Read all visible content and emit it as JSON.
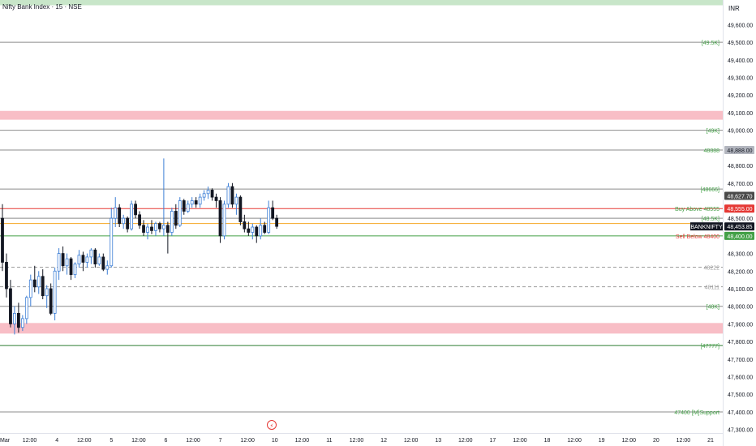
{
  "title": "Nifty Bank Index · 15 · NSE",
  "currency": "INR",
  "chart_data": {
    "type": "candlestick",
    "y_range": [
      47280,
      49740
    ],
    "y_ticks": [
      {
        "value": 49600,
        "label": "49,600.00"
      },
      {
        "value": 49500,
        "label": "49,500.00"
      },
      {
        "value": 49400,
        "label": "49,400.00"
      },
      {
        "value": 49300,
        "label": "49,300.00"
      },
      {
        "value": 49200,
        "label": "49,200.00"
      },
      {
        "value": 49100,
        "label": "49,100.00"
      },
      {
        "value": 49000,
        "label": "49,000.00"
      },
      {
        "value": 48800,
        "label": "48,800.00"
      },
      {
        "value": 48700,
        "label": "48,700.00"
      },
      {
        "value": 48500,
        "label": "48,500.00"
      },
      {
        "value": 48300,
        "label": "48,300.00"
      },
      {
        "value": 48200,
        "label": "48,200.00"
      },
      {
        "value": 48100,
        "label": "48,100.00"
      },
      {
        "value": 48000,
        "label": "48,000.00"
      },
      {
        "value": 47900,
        "label": "47,900.00"
      },
      {
        "value": 47800,
        "label": "47,800.00"
      },
      {
        "value": 47700,
        "label": "47,700.00"
      },
      {
        "value": 47600,
        "label": "47,600.00"
      },
      {
        "value": 47500,
        "label": "47,500.00"
      },
      {
        "value": 47400,
        "label": "47,400.00"
      },
      {
        "value": 47300,
        "label": "47,300.00"
      }
    ],
    "x_ticks": [
      "Mar",
      "12:00",
      "4",
      "12:00",
      "5",
      "12:00",
      "6",
      "12:00",
      "7",
      "12:00",
      "10",
      "12:00",
      "11",
      "12:00",
      "12",
      "12:00",
      "13",
      "12:00",
      "17",
      "12:00",
      "18",
      "12:00",
      "19",
      "12:00",
      "20",
      "12:00",
      "21"
    ],
    "zones": [
      {
        "from": 49060,
        "to": 49110,
        "color": "#f7b7c0"
      },
      {
        "from": 47845,
        "to": 47905,
        "color": "#f7b7c0"
      }
    ],
    "top_band": {
      "from": 49710,
      "to": 49740,
      "color": "#c8e6c9"
    },
    "levels": [
      {
        "value": 49500,
        "label": "[49.5K]",
        "color": "#8c8c8c",
        "style": "solid",
        "label_color": "#43a047"
      },
      {
        "value": 49000,
        "label": "[49K]",
        "color": "#8c8c8c",
        "style": "solid",
        "label_color": "#43a047"
      },
      {
        "value": 48888,
        "label": "48888",
        "color": "#8c8c8c",
        "style": "solid",
        "label_color": "#43a047",
        "badge": "48,888.00",
        "badge_color": "#b2b5be",
        "badge_text_color": "#131722"
      },
      {
        "value": 48666,
        "label": "[48666]",
        "color": "#8c8c8c",
        "style": "solid",
        "label_color": "#43a047"
      },
      {
        "value": 48555,
        "label": "Buy Above 48555",
        "color": "#e53935",
        "style": "solid",
        "label_color": "#43a047",
        "badge": "48,555.00",
        "badge_color": "#e53935",
        "badge_text_color": "#ffffff"
      },
      {
        "value": 48500,
        "label": "[48.5K]",
        "color": "#8c8c8c",
        "style": "solid",
        "label_color": "#43a047"
      },
      {
        "value": 48470,
        "label": "",
        "color": "#f5a623",
        "style": "solid"
      },
      {
        "value": 48400,
        "label": "Sell Below 48400",
        "color": "#43a047",
        "style": "solid",
        "label_color": "#e53935",
        "badge": "48,400.00",
        "badge_color": "#43a047",
        "badge_text_color": "#ffffff"
      },
      {
        "value": 48222,
        "label": "48222",
        "color": "#9e9e9e",
        "style": "dashed",
        "label_color": "#9e9e9e"
      },
      {
        "value": 48111,
        "label": "48111",
        "color": "#9e9e9e",
        "style": "dashed",
        "label_color": "#9e9e9e"
      },
      {
        "value": 48000,
        "label": "[48K]",
        "color": "#8c8c8c",
        "style": "solid",
        "label_color": "#43a047"
      },
      {
        "value": 47777,
        "label": "[47777]",
        "color": "#2e7d32",
        "style": "solid",
        "label_color": "#43a047"
      },
      {
        "value": 47400,
        "label": "47400 [M]Support",
        "color": "#8c8c8c",
        "style": "solid",
        "label_color": "#43a047"
      }
    ],
    "extra_badges": [
      {
        "value": 48627.7,
        "label": "48,627.70",
        "color": "#4a4a4a",
        "text_color": "#ffffff"
      },
      {
        "value": 48453.85,
        "label": "48,453.85",
        "color": "#131722",
        "text_color": "#ffffff",
        "tag": "BANKNIFTY"
      }
    ],
    "candles": [
      {
        "o": 48500,
        "h": 48580,
        "l": 48200,
        "c": 48250
      },
      {
        "o": 48250,
        "h": 48300,
        "l": 48050,
        "c": 48100
      },
      {
        "o": 48100,
        "h": 48150,
        "l": 47880,
        "c": 47900
      },
      {
        "o": 47900,
        "h": 48000,
        "l": 47840,
        "c": 47960
      },
      {
        "o": 47960,
        "h": 48020,
        "l": 47850,
        "c": 47880
      },
      {
        "o": 47880,
        "h": 47950,
        "l": 47860,
        "c": 47930
      },
      {
        "o": 47930,
        "h": 48060,
        "l": 47900,
        "c": 48050
      },
      {
        "o": 48050,
        "h": 48180,
        "l": 48000,
        "c": 48150
      },
      {
        "o": 48150,
        "h": 48230,
        "l": 48080,
        "c": 48110
      },
      {
        "o": 48110,
        "h": 48200,
        "l": 48070,
        "c": 48170
      },
      {
        "o": 48170,
        "h": 48210,
        "l": 48040,
        "c": 48060
      },
      {
        "o": 48060,
        "h": 48120,
        "l": 47990,
        "c": 48100
      },
      {
        "o": 48100,
        "h": 48130,
        "l": 47950,
        "c": 47960
      },
      {
        "o": 47960,
        "h": 48220,
        "l": 47920,
        "c": 48200
      },
      {
        "o": 48200,
        "h": 48330,
        "l": 48150,
        "c": 48300
      },
      {
        "o": 48300,
        "h": 48340,
        "l": 48200,
        "c": 48230
      },
      {
        "o": 48230,
        "h": 48300,
        "l": 48180,
        "c": 48270
      },
      {
        "o": 48270,
        "h": 48280,
        "l": 48150,
        "c": 48180
      },
      {
        "o": 48180,
        "h": 48250,
        "l": 48160,
        "c": 48240
      },
      {
        "o": 48240,
        "h": 48320,
        "l": 48220,
        "c": 48290
      },
      {
        "o": 48290,
        "h": 48310,
        "l": 48200,
        "c": 48250
      },
      {
        "o": 48250,
        "h": 48300,
        "l": 48220,
        "c": 48280
      },
      {
        "o": 48280,
        "h": 48330,
        "l": 48240,
        "c": 48320
      },
      {
        "o": 48320,
        "h": 48330,
        "l": 48220,
        "c": 48240
      },
      {
        "o": 48240,
        "h": 48300,
        "l": 48230,
        "c": 48280
      },
      {
        "o": 48280,
        "h": 48300,
        "l": 48200,
        "c": 48210
      },
      {
        "o": 48210,
        "h": 48260,
        "l": 48180,
        "c": 48230
      },
      {
        "o": 48230,
        "h": 48560,
        "l": 48220,
        "c": 48500
      },
      {
        "o": 48500,
        "h": 48620,
        "l": 48450,
        "c": 48560
      },
      {
        "o": 48560,
        "h": 48580,
        "l": 48450,
        "c": 48470
      },
      {
        "o": 48470,
        "h": 48520,
        "l": 48440,
        "c": 48500
      },
      {
        "o": 48500,
        "h": 48510,
        "l": 48420,
        "c": 48440
      },
      {
        "o": 48440,
        "h": 48600,
        "l": 48430,
        "c": 48580
      },
      {
        "o": 48580,
        "h": 48600,
        "l": 48500,
        "c": 48520
      },
      {
        "o": 48520,
        "h": 48540,
        "l": 48440,
        "c": 48460
      },
      {
        "o": 48460,
        "h": 48490,
        "l": 48400,
        "c": 48420
      },
      {
        "o": 48420,
        "h": 48470,
        "l": 48380,
        "c": 48450
      },
      {
        "o": 48450,
        "h": 48490,
        "l": 48410,
        "c": 48430
      },
      {
        "o": 48430,
        "h": 48480,
        "l": 48400,
        "c": 48470
      },
      {
        "o": 48470,
        "h": 48480,
        "l": 48420,
        "c": 48440
      },
      {
        "o": 48440,
        "h": 48840,
        "l": 48400,
        "c": 48460
      },
      {
        "o": 48460,
        "h": 48480,
        "l": 48300,
        "c": 48420
      },
      {
        "o": 48420,
        "h": 48560,
        "l": 48400,
        "c": 48540
      },
      {
        "o": 48540,
        "h": 48580,
        "l": 48440,
        "c": 48460
      },
      {
        "o": 48460,
        "h": 48620,
        "l": 48450,
        "c": 48600
      },
      {
        "o": 48600,
        "h": 48610,
        "l": 48520,
        "c": 48540
      },
      {
        "o": 48540,
        "h": 48600,
        "l": 48530,
        "c": 48580
      },
      {
        "o": 48580,
        "h": 48620,
        "l": 48560,
        "c": 48600
      },
      {
        "o": 48600,
        "h": 48620,
        "l": 48560,
        "c": 48580
      },
      {
        "o": 48580,
        "h": 48640,
        "l": 48560,
        "c": 48620
      },
      {
        "o": 48620,
        "h": 48660,
        "l": 48600,
        "c": 48640
      },
      {
        "o": 48640,
        "h": 48680,
        "l": 48610,
        "c": 48660
      },
      {
        "o": 48660,
        "h": 48670,
        "l": 48600,
        "c": 48620
      },
      {
        "o": 48620,
        "h": 48640,
        "l": 48560,
        "c": 48600
      },
      {
        "o": 48600,
        "h": 48620,
        "l": 48360,
        "c": 48400
      },
      {
        "o": 48400,
        "h": 48600,
        "l": 48380,
        "c": 48580
      },
      {
        "o": 48580,
        "h": 48700,
        "l": 48560,
        "c": 48680
      },
      {
        "o": 48680,
        "h": 48700,
        "l": 48560,
        "c": 48580
      },
      {
        "o": 48580,
        "h": 48640,
        "l": 48520,
        "c": 48620
      },
      {
        "o": 48620,
        "h": 48630,
        "l": 48460,
        "c": 48480
      },
      {
        "o": 48480,
        "h": 48520,
        "l": 48420,
        "c": 48440
      },
      {
        "o": 48440,
        "h": 48480,
        "l": 48400,
        "c": 48420
      },
      {
        "o": 48420,
        "h": 48470,
        "l": 48380,
        "c": 48450
      },
      {
        "o": 48450,
        "h": 48460,
        "l": 48360,
        "c": 48400
      },
      {
        "o": 48400,
        "h": 48500,
        "l": 48380,
        "c": 48460
      },
      {
        "o": 48460,
        "h": 48480,
        "l": 48410,
        "c": 48420
      },
      {
        "o": 48420,
        "h": 48600,
        "l": 48410,
        "c": 48560
      },
      {
        "o": 48560,
        "h": 48600,
        "l": 48490,
        "c": 48500
      },
      {
        "o": 48500,
        "h": 48520,
        "l": 48440,
        "c": 48454
      }
    ]
  }
}
